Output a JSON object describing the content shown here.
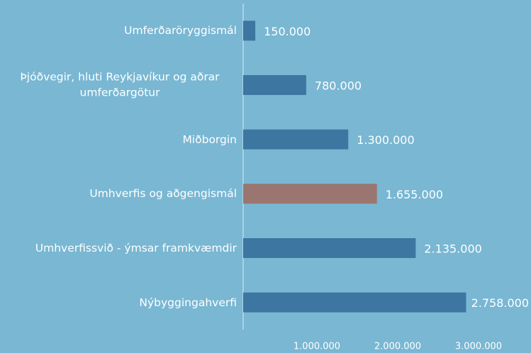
{
  "chart_data": {
    "type": "barh",
    "categories": [
      "Umferðaröryggismál",
      "Þjóðvegir, hluti Reykjavíkur og aðrar umferðargötur",
      "Miðborgin",
      "Umhverfis og aðgengismál",
      "Umhverfissvið - ýmsar framkvæmdir",
      "Nýbyggingahverfi"
    ],
    "values": [
      150000,
      780000,
      1300000,
      1655000,
      2135000,
      2758000
    ],
    "value_labels": [
      "150.000",
      "780.000",
      "1.300.000",
      "1.655.000",
      "2.135.000",
      "2.758.000"
    ],
    "colors": [
      "#3d76a0",
      "#3d76a0",
      "#3d76a0",
      "#9b7570",
      "#3d76a0",
      "#3d76a0"
    ],
    "xlim": [
      0,
      3500000
    ],
    "xticks": [
      {
        "value": 1000000,
        "label": "1.000.000"
      },
      {
        "value": 2000000,
        "label": "2.000.000"
      },
      {
        "value": 3000000,
        "label": "3.000.000"
      }
    ],
    "grid": false
  }
}
